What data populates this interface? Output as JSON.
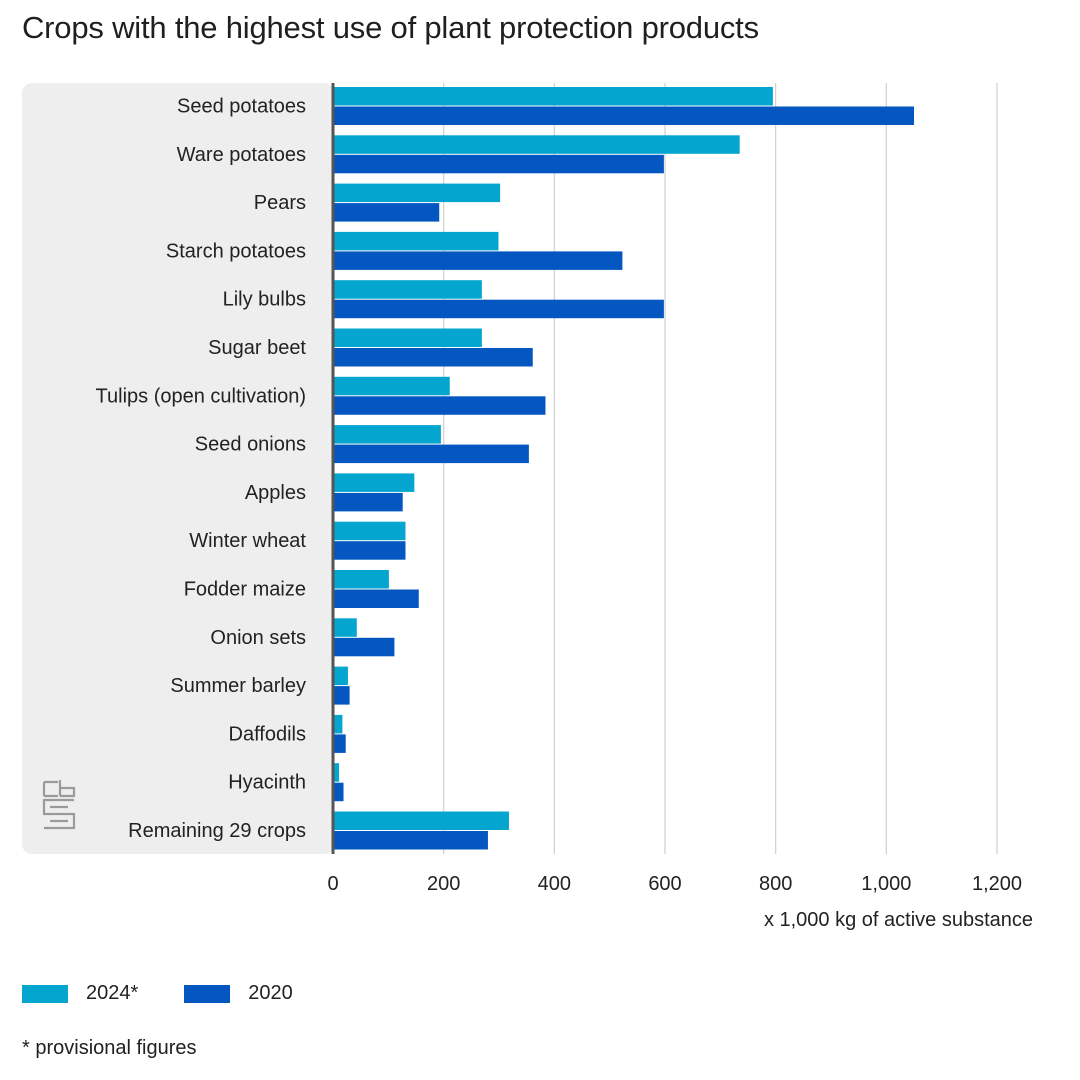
{
  "title": "Crops with the highest use of plant protection products",
  "colors": {
    "series_2024": "#04a5cf",
    "series_2020": "#0457c1",
    "panel": "#eeeeee",
    "axis": "#555555",
    "grid": "#cfcfcf"
  },
  "logo": {
    "name": "cbs-logo-icon",
    "text": "cbs"
  },
  "footnote": "* provisional figures",
  "chart_data": {
    "type": "bar",
    "orientation": "horizontal",
    "title": "Crops with the highest use of plant protection products",
    "xlabel": "x 1,000 kg of active substance",
    "ylabel": "",
    "xlim": [
      0,
      1200
    ],
    "xticks": [
      0,
      200,
      400,
      600,
      800,
      1000,
      1200
    ],
    "xtick_labels": [
      "0",
      "200",
      "400",
      "600",
      "800",
      "1,000",
      "1,200"
    ],
    "grid": true,
    "legend_position": "bottom-left",
    "categories": [
      "Seed potatoes",
      "Ware potatoes",
      "Pears",
      "Starch potatoes",
      "Lily bulbs",
      "Sugar beet",
      "Tulips (open cultivation)",
      "Seed onions",
      "Apples",
      "Winter wheat",
      "Fodder maize",
      "Onion sets",
      "Summer barley",
      "Daffodils",
      "Hyacinth",
      "Remaining 29 crops"
    ],
    "series": [
      {
        "name": "2024*",
        "color": "#04a5cf",
        "values": [
          795,
          735,
          302,
          299,
          269,
          269,
          211,
          195,
          147,
          131,
          101,
          43,
          27,
          17,
          11,
          318
        ]
      },
      {
        "name": "2020",
        "color": "#0457c1",
        "values": [
          1050,
          598,
          192,
          523,
          598,
          361,
          384,
          354,
          126,
          131,
          155,
          111,
          30,
          23,
          19,
          280
        ]
      }
    ]
  }
}
